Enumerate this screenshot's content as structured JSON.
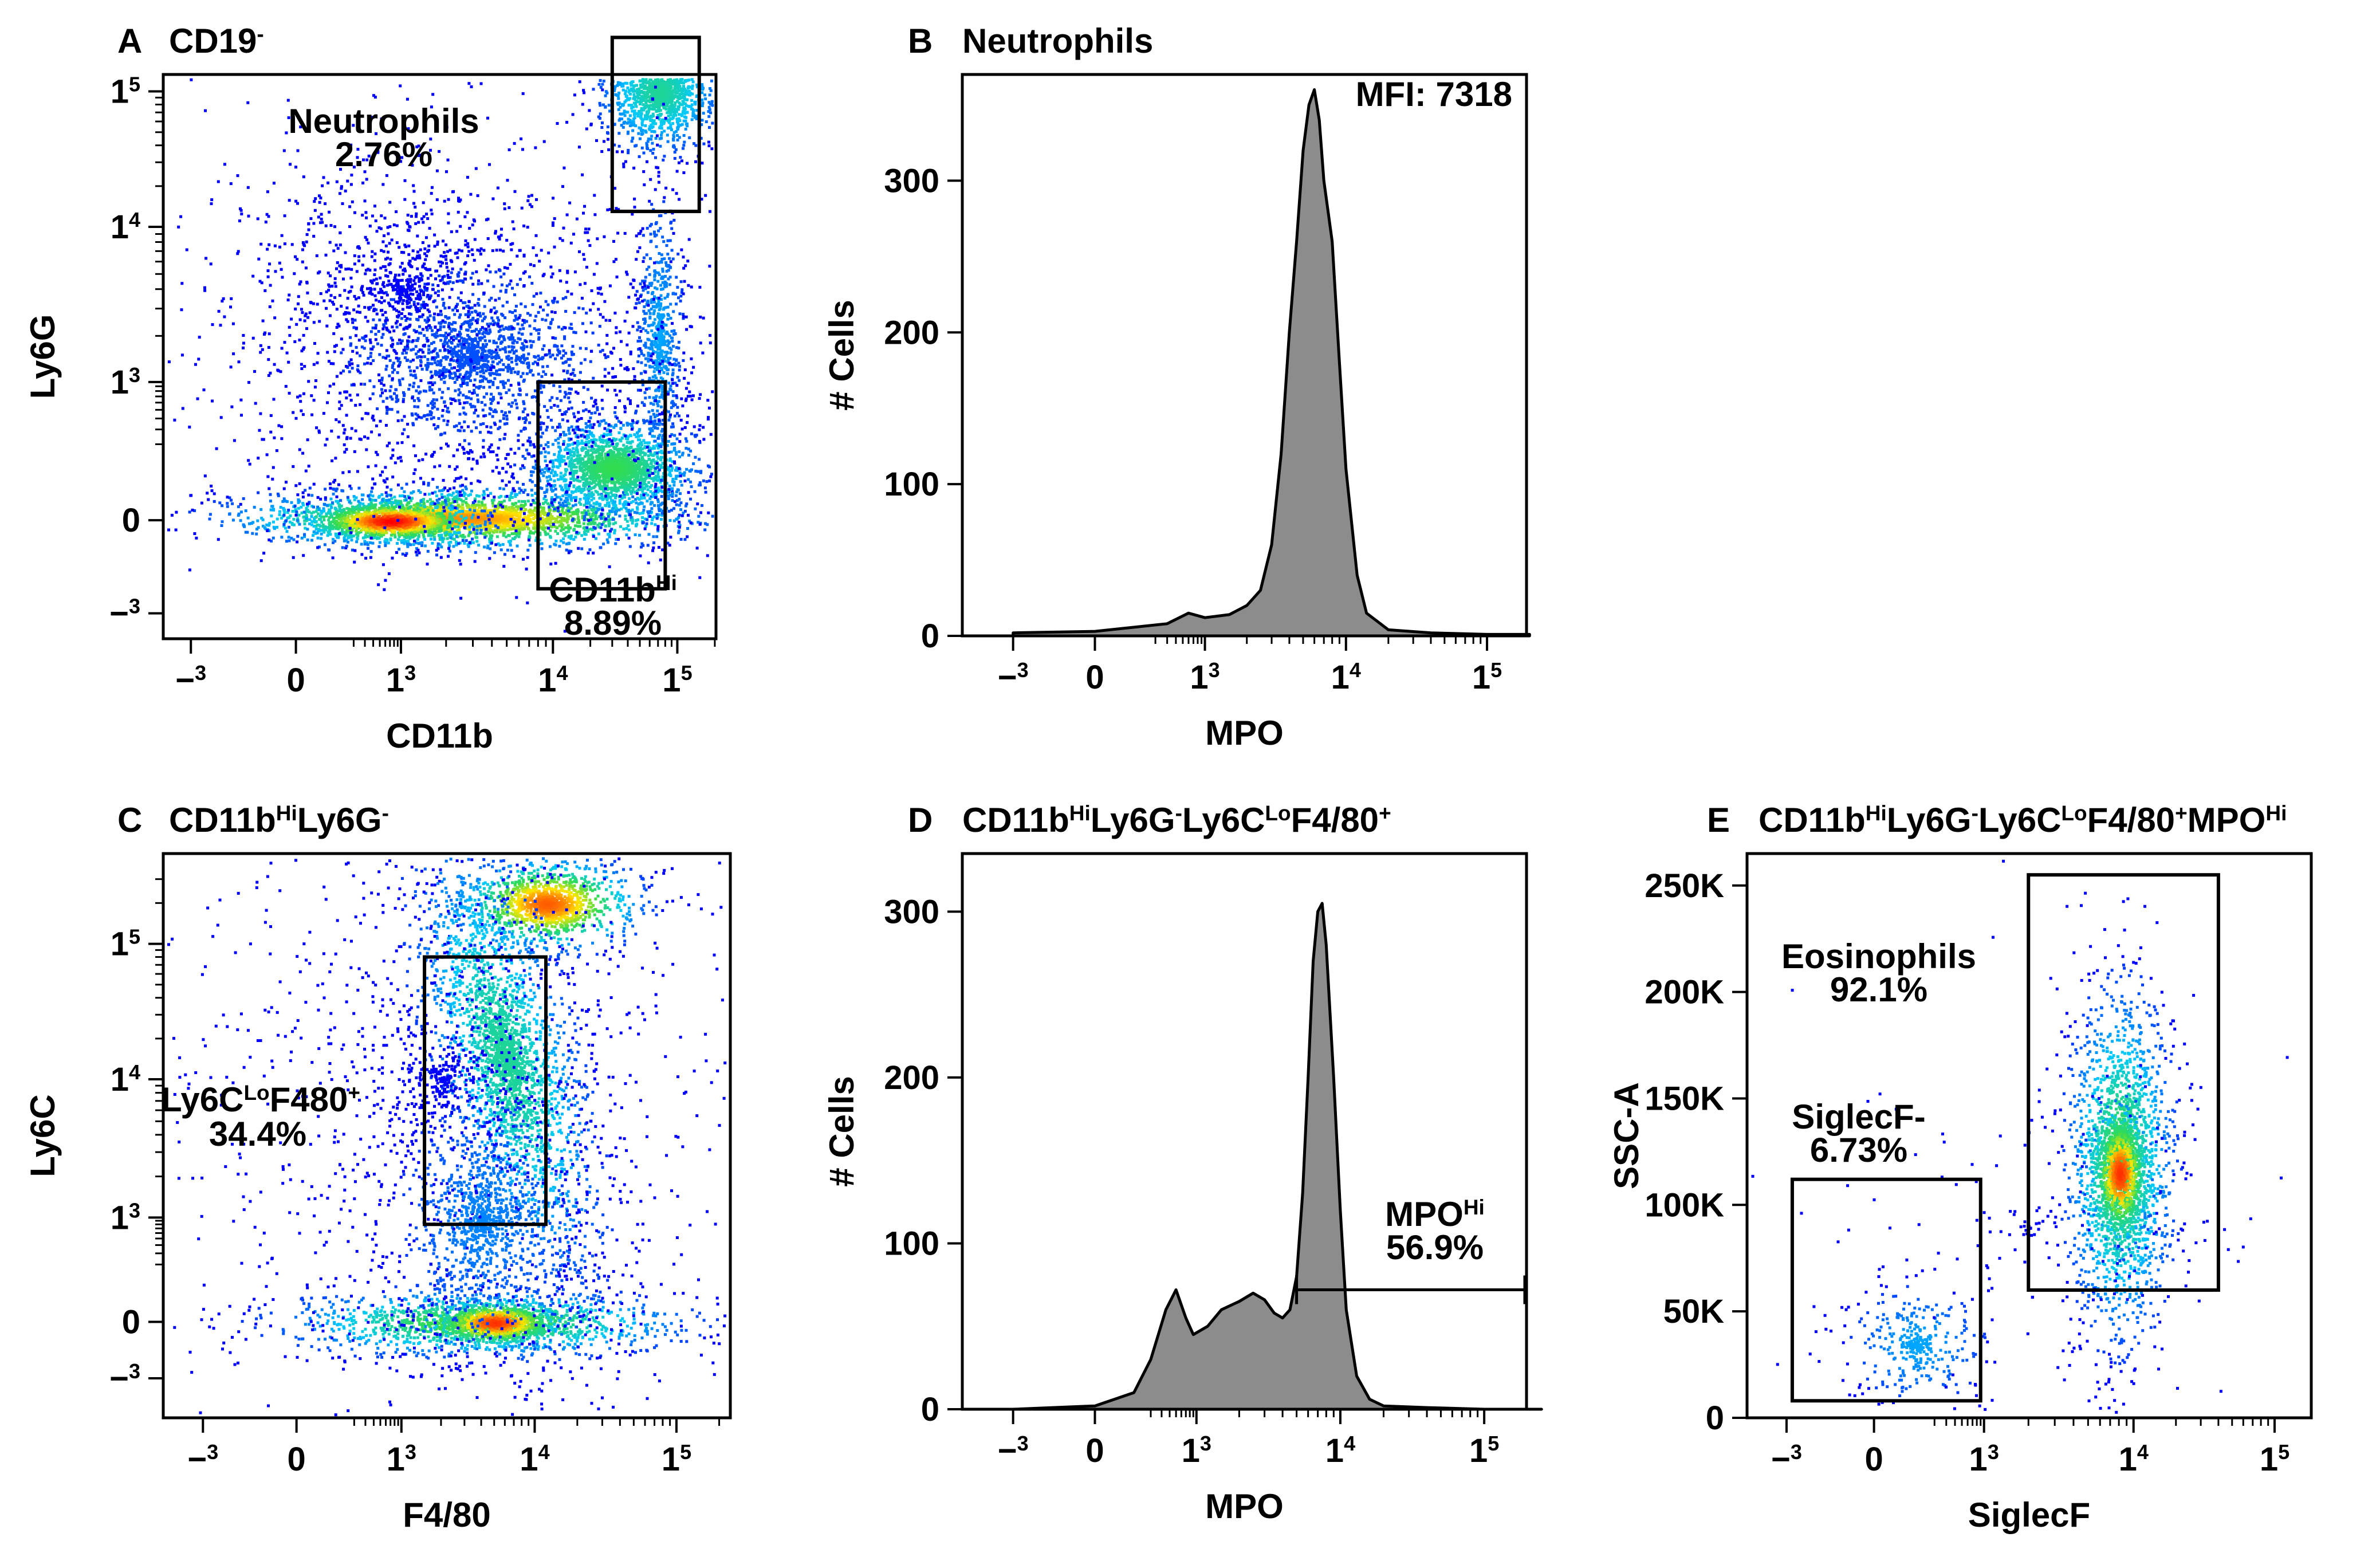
{
  "figure": {
    "colors": {
      "axis": "#000000",
      "histogram_fill": "#8c8c8c",
      "density_low": "#0000ff",
      "density_mid": "#00ffff",
      "density_high": "#ff0000"
    }
  },
  "chart_data": [
    {
      "panel": "A",
      "type": "scatter",
      "subtitle": "density flow-cytometry dot plot",
      "title_main": "CD19",
      "title_sup": "-",
      "xlabel": "CD11b",
      "ylabel": "Ly6G",
      "x_ticks": [
        [
          "−10",
          "3"
        ],
        [
          "0",
          ""
        ],
        [
          "10",
          "3"
        ],
        [
          "10",
          "4"
        ],
        [
          "10",
          "5"
        ]
      ],
      "y_ticks": [
        [
          "−10",
          "3"
        ],
        [
          "0",
          ""
        ],
        [
          "10",
          "3"
        ],
        [
          "10",
          "4"
        ],
        [
          "10",
          "5"
        ]
      ],
      "x_scale": "biexponential",
      "y_scale": "biexponential",
      "gates": [
        {
          "name": "Neutrophils",
          "percent": "2.76%",
          "x": [
            30000,
            150000
          ],
          "y": [
            13000,
            250000
          ]
        },
        {
          "name": "CD11b",
          "name_sup": "Hi",
          "percent": "8.89%",
          "x": [
            8000,
            80000
          ],
          "y": [
            -400,
            1000
          ]
        }
      ],
      "populations": [
        {
          "name": "main",
          "x": 700,
          "y": 0
        },
        {
          "name": "neutrophils",
          "x": 50000,
          "y": 100000
        }
      ]
    },
    {
      "panel": "B",
      "type": "area",
      "subtitle": "MPO histogram of neutrophils",
      "title_main": "Neutrophils",
      "annotation": "MFI: 7318",
      "xlabel": "MPO",
      "ylabel": "# Cells",
      "x_ticks": [
        [
          "−10",
          "3"
        ],
        [
          "0",
          ""
        ],
        [
          "10",
          "3"
        ],
        [
          "10",
          "4"
        ],
        [
          "10",
          "5"
        ]
      ],
      "y_ticks": [
        "0",
        "100",
        "200",
        "300"
      ],
      "ylim": [
        0,
        370
      ],
      "x": [
        -1000,
        0,
        300,
        600,
        1000,
        1500,
        2000,
        2500,
        3000,
        3500,
        4000,
        4500,
        5000,
        5500,
        6000,
        6500,
        7000,
        8000,
        9000,
        10000,
        12000,
        14000,
        20000,
        40000,
        100000,
        200000
      ],
      "values": [
        2,
        3,
        8,
        15,
        12,
        14,
        20,
        30,
        60,
        120,
        200,
        260,
        320,
        350,
        360,
        340,
        300,
        260,
        180,
        110,
        40,
        15,
        4,
        2,
        1,
        1
      ]
    },
    {
      "panel": "C",
      "type": "scatter",
      "subtitle": "density flow-cytometry dot plot",
      "title_parts": [
        [
          "CD11b",
          ""
        ],
        [
          "Hi",
          "sup"
        ],
        [
          "Ly6G",
          ""
        ],
        [
          "-",
          "sup"
        ]
      ],
      "xlabel": "F4/80",
      "ylabel": "Ly6C",
      "x_ticks": [
        [
          "−10",
          "3"
        ],
        [
          "0",
          ""
        ],
        [
          "10",
          "3"
        ],
        [
          "10",
          "4"
        ],
        [
          "10",
          "5"
        ]
      ],
      "y_ticks": [
        [
          "−10",
          "3"
        ],
        [
          "0",
          ""
        ],
        [
          "10",
          "3"
        ],
        [
          "10",
          "4"
        ],
        [
          "10",
          "5"
        ]
      ],
      "gates": [
        {
          "name_parts": [
            [
              "Ly6C",
              ""
            ],
            [
              "Lo",
              "sup"
            ],
            [
              "F480",
              ""
            ],
            [
              "+",
              "sup"
            ]
          ],
          "percent": "34.4%",
          "x": [
            1500,
            12000
          ],
          "y": [
            800,
            80000
          ]
        }
      ],
      "populations": [
        {
          "name": "Ly6C-hi",
          "x": 9000,
          "y": 200000
        },
        {
          "name": "Ly6C-lo",
          "x": 4000,
          "y": 0
        }
      ]
    },
    {
      "panel": "D",
      "type": "area",
      "subtitle": "MPO histogram",
      "title_parts": [
        [
          "CD11b",
          ""
        ],
        [
          "Hi",
          "sup"
        ],
        [
          "Ly6G",
          ""
        ],
        [
          "-",
          "sup"
        ],
        [
          "Ly6C",
          ""
        ],
        [
          "Lo",
          "sup"
        ],
        [
          "F4/80",
          ""
        ],
        [
          "+",
          "sup"
        ]
      ],
      "xlabel": "MPO",
      "ylabel": "# Cells",
      "x_ticks": [
        [
          "−10",
          "3"
        ],
        [
          "0",
          ""
        ],
        [
          "10",
          "3"
        ],
        [
          "10",
          "4"
        ],
        [
          "10",
          "5"
        ]
      ],
      "y_ticks": [
        "0",
        "100",
        "200",
        "300"
      ],
      "ylim": [
        0,
        335
      ],
      "gate": {
        "name": "MPO",
        "name_sup": "Hi",
        "percent": "56.9%",
        "x_from": 5000,
        "x_to": 250000,
        "y": 72
      },
      "x": [
        -1000,
        0,
        100,
        200,
        350,
        500,
        700,
        900,
        1200,
        1500,
        2000,
        2500,
        3000,
        3500,
        4000,
        4500,
        5000,
        5500,
        6000,
        6500,
        7000,
        7500,
        8000,
        9000,
        10000,
        11000,
        13000,
        16000,
        20000,
        40000,
        100000,
        250000
      ],
      "values": [
        0,
        2,
        10,
        30,
        60,
        72,
        55,
        45,
        50,
        60,
        65,
        70,
        66,
        58,
        55,
        60,
        80,
        130,
        200,
        270,
        300,
        305,
        280,
        200,
        120,
        60,
        20,
        6,
        2,
        1,
        0,
        0
      ]
    },
    {
      "panel": "E",
      "type": "scatter",
      "subtitle": "density flow-cytometry dot plot",
      "title_parts": [
        [
          "CD11b",
          ""
        ],
        [
          "Hi",
          "sup"
        ],
        [
          "Ly6G",
          ""
        ],
        [
          "-",
          "sup"
        ],
        [
          "Ly6C",
          ""
        ],
        [
          "Lo",
          "sup"
        ],
        [
          "F4/80",
          ""
        ],
        [
          "+",
          "sup"
        ],
        [
          "MPO",
          ""
        ],
        [
          "Hi",
          "sup"
        ]
      ],
      "xlabel": "SiglecF",
      "ylabel": "SSC-A",
      "x_ticks": [
        [
          "−10",
          "3"
        ],
        [
          "0",
          ""
        ],
        [
          "10",
          "3"
        ],
        [
          "10",
          "4"
        ],
        [
          "10",
          "5"
        ]
      ],
      "y_ticks": [
        "0",
        "50K",
        "100K",
        "150K",
        "200K",
        "250K"
      ],
      "ylim": [
        0,
        265000
      ],
      "gates": [
        {
          "name": "Eosinophils",
          "percent": "92.1%",
          "x": [
            2000,
            40000
          ],
          "y": [
            60000,
            255000
          ]
        },
        {
          "name": "SiglecF-",
          "percent": "6.73%",
          "x": [
            -800,
            900
          ],
          "y": [
            8000,
            112000
          ]
        }
      ],
      "populations": [
        {
          "name": "eosinophils",
          "x": 8000,
          "y": 120000
        },
        {
          "name": "SiglecF-neg",
          "x": 100,
          "y": 35000
        }
      ]
    }
  ]
}
